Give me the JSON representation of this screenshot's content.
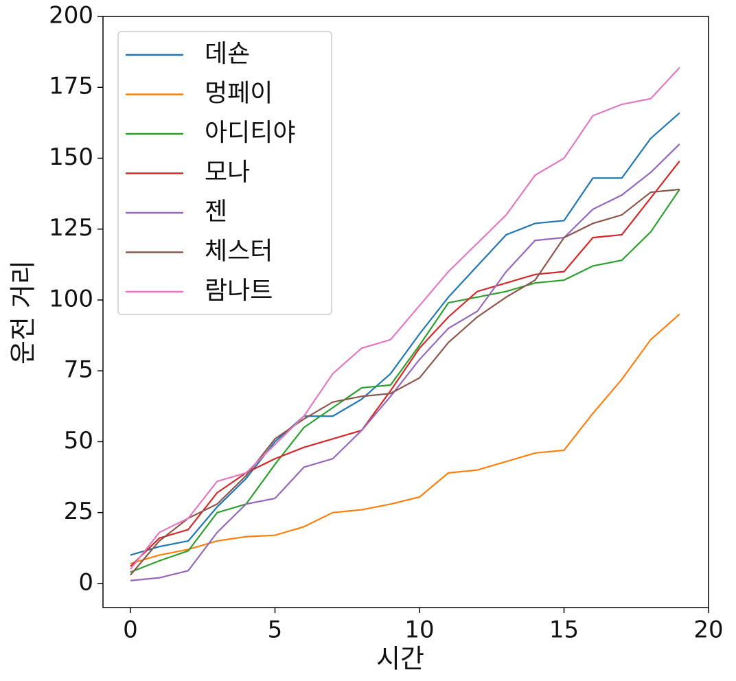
{
  "chart_data": {
    "type": "line",
    "x": [
      0,
      1,
      2,
      3,
      4,
      5,
      6,
      7,
      8,
      9,
      10,
      11,
      12,
      13,
      14,
      15,
      16,
      17,
      18,
      19
    ],
    "xlabel": "시간",
    "ylabel": "운전 거리",
    "xlim": [
      -0.95,
      20
    ],
    "ylim": [
      -8.5,
      200
    ],
    "xticks": [
      0,
      5,
      10,
      15,
      20
    ],
    "yticks": [
      0,
      25,
      50,
      75,
      100,
      125,
      150,
      175,
      200
    ],
    "legend": "upper left",
    "series": [
      {
        "name": "데숀",
        "color": "#1f77b4",
        "values": [
          10,
          13,
          15,
          27,
          37,
          50,
          59,
          59,
          65,
          74,
          88,
          101,
          112,
          123,
          127,
          128,
          143,
          143,
          157,
          166
        ]
      },
      {
        "name": "멍페이",
        "color": "#ff7f0e",
        "values": [
          7,
          10,
          12,
          15,
          16.5,
          17,
          20,
          25,
          26,
          28,
          30.5,
          39,
          40,
          43,
          46,
          47,
          60,
          72,
          86,
          95
        ]
      },
      {
        "name": "아디티야",
        "color": "#2ca02c",
        "values": [
          4,
          8,
          11.5,
          25,
          28,
          42,
          55,
          62,
          69,
          70,
          84,
          99,
          101,
          103,
          106,
          107,
          112,
          114,
          124,
          139
        ]
      },
      {
        "name": "모나",
        "color": "#d62728",
        "values": [
          6,
          16,
          19,
          32,
          39,
          44,
          48,
          51,
          54,
          68,
          83,
          94,
          103,
          106,
          109,
          110,
          122,
          123,
          136,
          149
        ]
      },
      {
        "name": "젠",
        "color": "#9467bd",
        "values": [
          1,
          2,
          4.5,
          18,
          28,
          30,
          41,
          44,
          54,
          66,
          79,
          90,
          96,
          110,
          121,
          122,
          132,
          137,
          145,
          155
        ]
      },
      {
        "name": "체스터",
        "color": "#8c564b",
        "values": [
          3,
          15,
          23,
          28,
          38,
          51,
          58,
          64,
          66,
          67,
          72.5,
          85,
          94,
          101,
          107,
          122,
          127,
          130,
          138,
          139
        ]
      },
      {
        "name": "람나트",
        "color": "#e377c2",
        "values": [
          5,
          18,
          23,
          36,
          39,
          49,
          59,
          74,
          83,
          86,
          98,
          110,
          120,
          130,
          144,
          150,
          165,
          169,
          171,
          182
        ]
      }
    ]
  }
}
